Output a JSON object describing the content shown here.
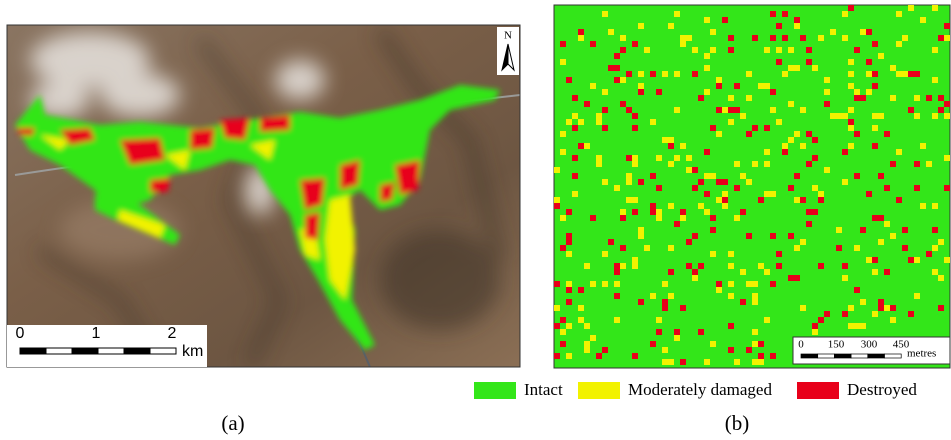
{
  "panel_a": {
    "caption": "(a)",
    "north": "N",
    "scale": {
      "labels": [
        "0",
        "1",
        "2"
      ],
      "unit": "km"
    }
  },
  "panel_b": {
    "caption": "(b)",
    "scale": {
      "labels": [
        "0",
        "150",
        "300",
        "450"
      ],
      "unit": "metres"
    }
  },
  "legend": [
    {
      "label": "Intact",
      "color": "#33e619"
    },
    {
      "label": "Moderately damaged",
      "color": "#f2f200"
    },
    {
      "label": "Destroyed",
      "color": "#e8001a"
    }
  ]
}
